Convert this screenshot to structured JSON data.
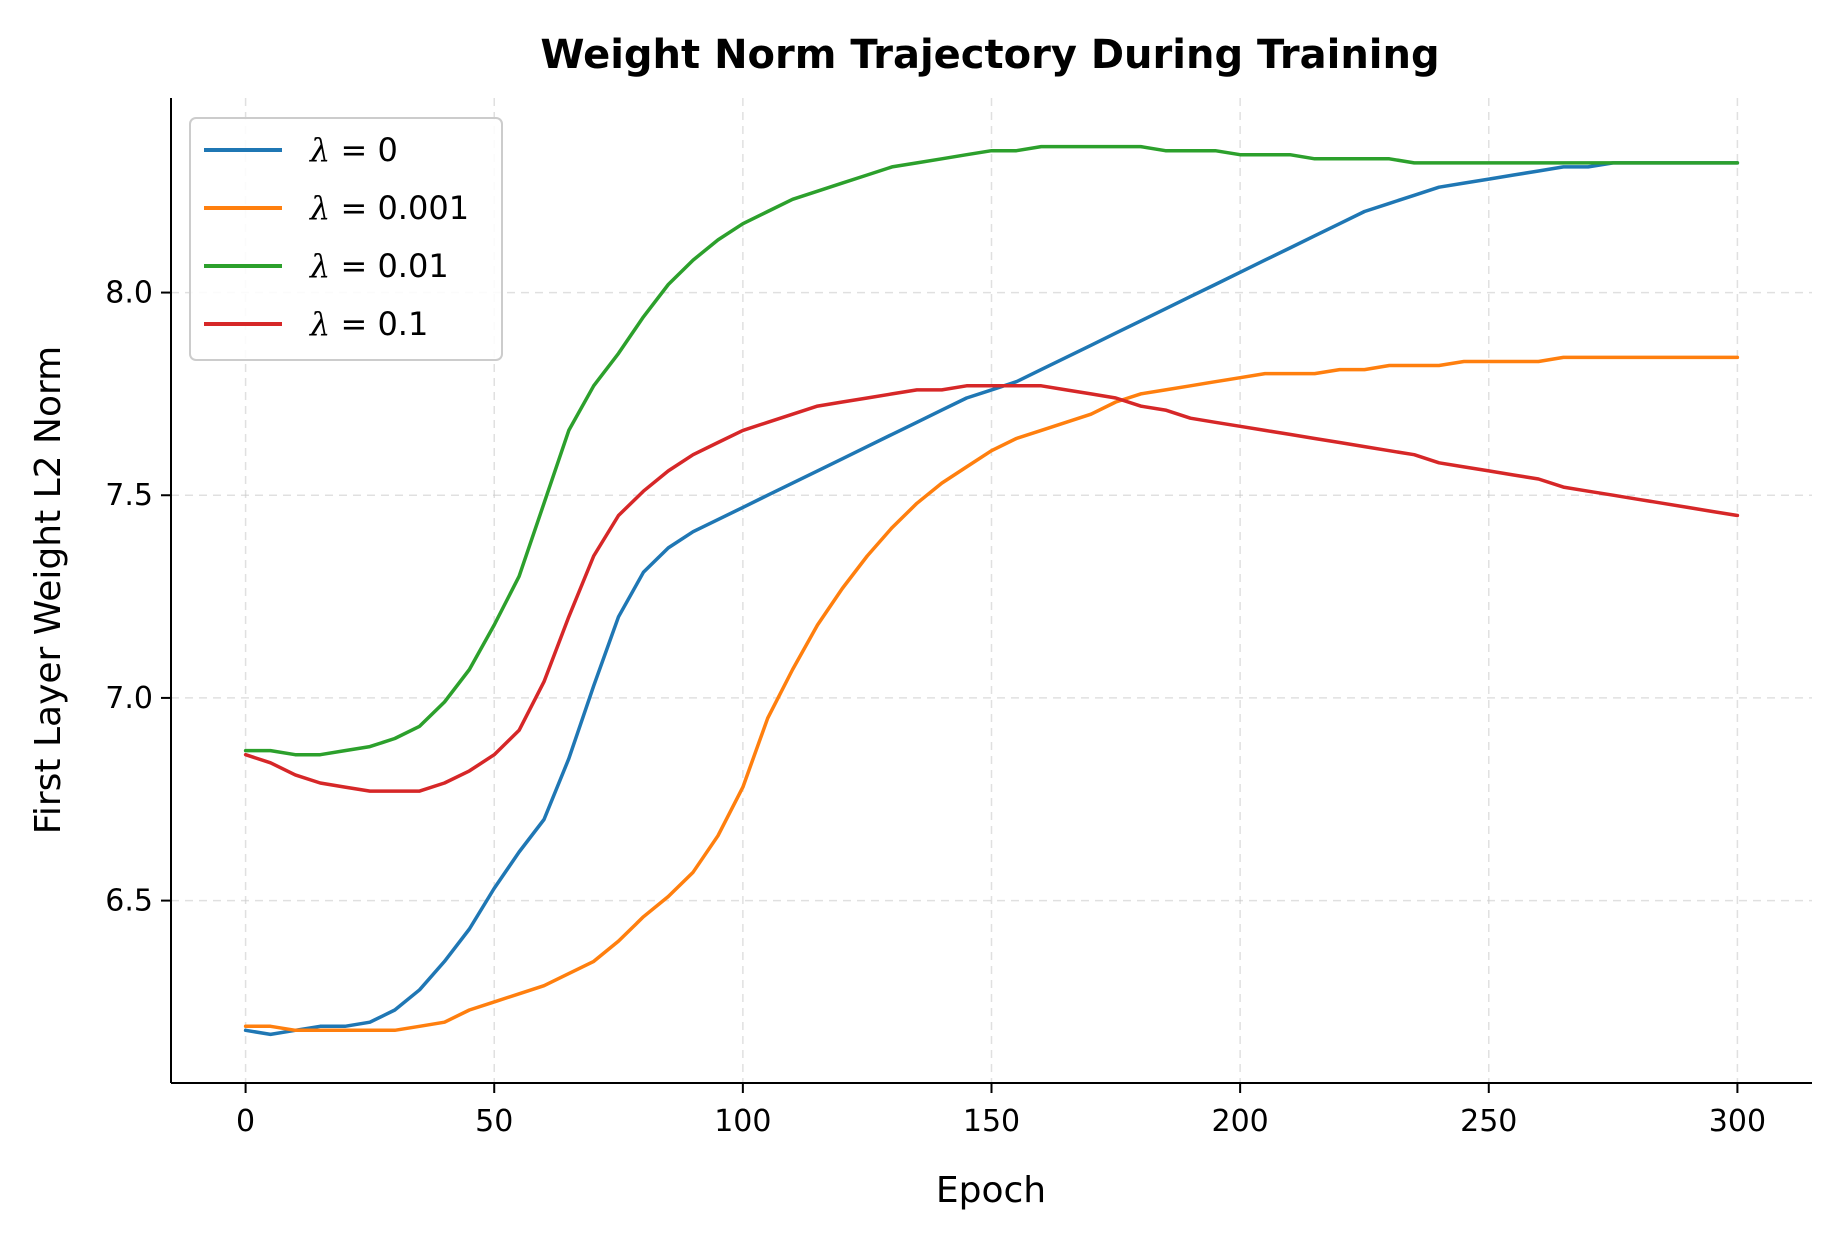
{
  "chart_data": {
    "type": "line",
    "title": "Weight Norm Trajectory During Training",
    "xlabel": "Epoch",
    "ylabel": "First Layer Weight L2 Norm",
    "xlim": [
      -15,
      315
    ],
    "ylim": [
      6.05,
      8.48
    ],
    "xticks": [
      0,
      50,
      100,
      150,
      200,
      250,
      300
    ],
    "yticks": [
      6.5,
      7.0,
      7.5,
      8.0
    ],
    "xtick_labels": [
      "0",
      "50",
      "100",
      "150",
      "200",
      "250",
      "300"
    ],
    "ytick_labels": [
      "6.5",
      "7.0",
      "7.5",
      "8.0"
    ],
    "grid": true,
    "legend": {
      "placement": "top-left"
    },
    "x": [
      0,
      5,
      10,
      15,
      20,
      25,
      30,
      35,
      40,
      45,
      50,
      55,
      60,
      65,
      70,
      75,
      80,
      85,
      90,
      95,
      100,
      105,
      110,
      115,
      120,
      125,
      130,
      135,
      140,
      145,
      150,
      155,
      160,
      165,
      170,
      175,
      180,
      185,
      190,
      195,
      200,
      205,
      210,
      215,
      220,
      225,
      230,
      235,
      240,
      245,
      250,
      255,
      260,
      265,
      270,
      275,
      280,
      285,
      290,
      295,
      300
    ],
    "series": [
      {
        "name": "λ = 0",
        "label_symbol": "λ",
        "label_value": " = 0",
        "color": "#1f77b4",
        "values": [
          6.18,
          6.17,
          6.18,
          6.19,
          6.19,
          6.2,
          6.23,
          6.28,
          6.35,
          6.43,
          6.53,
          6.62,
          6.7,
          6.85,
          7.03,
          7.2,
          7.31,
          7.37,
          7.41,
          7.44,
          7.47,
          7.5,
          7.53,
          7.56,
          7.59,
          7.62,
          7.65,
          7.68,
          7.71,
          7.74,
          7.76,
          7.78,
          7.81,
          7.84,
          7.87,
          7.9,
          7.93,
          7.96,
          7.99,
          8.02,
          8.05,
          8.08,
          8.11,
          8.14,
          8.17,
          8.2,
          8.22,
          8.24,
          8.26,
          8.27,
          8.28,
          8.29,
          8.3,
          8.31,
          8.31,
          8.32,
          8.32,
          8.32,
          8.32,
          8.32,
          8.32
        ]
      },
      {
        "name": "λ = 0.001",
        "label_symbol": "λ",
        "label_value": " = 0.001",
        "color": "#ff7f0e",
        "values": [
          6.19,
          6.19,
          6.18,
          6.18,
          6.18,
          6.18,
          6.18,
          6.19,
          6.2,
          6.23,
          6.25,
          6.27,
          6.29,
          6.32,
          6.35,
          6.4,
          6.46,
          6.51,
          6.57,
          6.66,
          6.78,
          6.95,
          7.07,
          7.18,
          7.27,
          7.35,
          7.42,
          7.48,
          7.53,
          7.57,
          7.61,
          7.64,
          7.66,
          7.68,
          7.7,
          7.73,
          7.75,
          7.76,
          7.77,
          7.78,
          7.79,
          7.8,
          7.8,
          7.8,
          7.81,
          7.81,
          7.82,
          7.82,
          7.82,
          7.83,
          7.83,
          7.83,
          7.83,
          7.84,
          7.84,
          7.84,
          7.84,
          7.84,
          7.84,
          7.84,
          7.84
        ]
      },
      {
        "name": "λ = 0.01",
        "label_symbol": "λ",
        "label_value": " = 0.01",
        "color": "#2ca02c",
        "values": [
          6.87,
          6.87,
          6.86,
          6.86,
          6.87,
          6.88,
          6.9,
          6.93,
          6.99,
          7.07,
          7.18,
          7.3,
          7.48,
          7.66,
          7.77,
          7.85,
          7.94,
          8.02,
          8.08,
          8.13,
          8.17,
          8.2,
          8.23,
          8.25,
          8.27,
          8.29,
          8.31,
          8.32,
          8.33,
          8.34,
          8.35,
          8.35,
          8.36,
          8.36,
          8.36,
          8.36,
          8.36,
          8.35,
          8.35,
          8.35,
          8.34,
          8.34,
          8.34,
          8.33,
          8.33,
          8.33,
          8.33,
          8.32,
          8.32,
          8.32,
          8.32,
          8.32,
          8.32,
          8.32,
          8.32,
          8.32,
          8.32,
          8.32,
          8.32,
          8.32,
          8.32
        ]
      },
      {
        "name": "λ = 0.1",
        "label_symbol": "λ",
        "label_value": " = 0.1",
        "color": "#d62728",
        "values": [
          6.86,
          6.84,
          6.81,
          6.79,
          6.78,
          6.77,
          6.77,
          6.77,
          6.79,
          6.82,
          6.86,
          6.92,
          7.04,
          7.2,
          7.35,
          7.45,
          7.51,
          7.56,
          7.6,
          7.63,
          7.66,
          7.68,
          7.7,
          7.72,
          7.73,
          7.74,
          7.75,
          7.76,
          7.76,
          7.77,
          7.77,
          7.77,
          7.77,
          7.76,
          7.75,
          7.74,
          7.72,
          7.71,
          7.69,
          7.68,
          7.67,
          7.66,
          7.65,
          7.64,
          7.63,
          7.62,
          7.61,
          7.6,
          7.58,
          7.57,
          7.56,
          7.55,
          7.54,
          7.52,
          7.51,
          7.5,
          7.49,
          7.48,
          7.47,
          7.46,
          7.45
        ]
      }
    ]
  }
}
